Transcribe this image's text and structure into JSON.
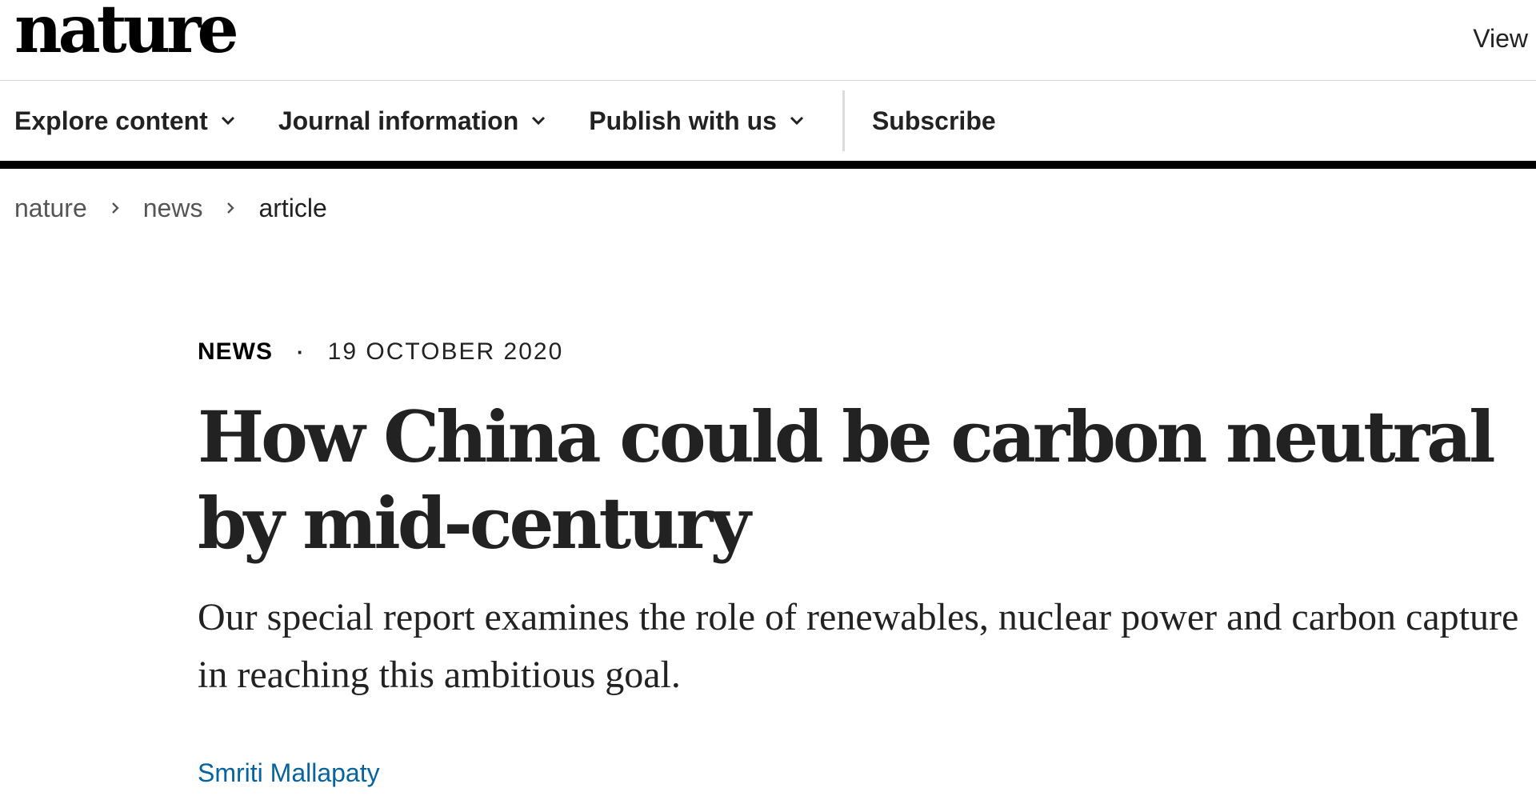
{
  "header": {
    "logo_text": "nature",
    "view_link": "View"
  },
  "nav": {
    "items": [
      {
        "label": "Explore content",
        "icon": "chevron-down-icon"
      },
      {
        "label": "Journal information",
        "icon": "chevron-down-icon"
      },
      {
        "label": "Publish with us",
        "icon": "chevron-down-icon"
      }
    ],
    "subscribe_label": "Subscribe"
  },
  "breadcrumb": {
    "items": [
      "nature",
      "news",
      "article"
    ],
    "separator_icon": "chevron-right-icon"
  },
  "article": {
    "type": "NEWS",
    "separator": "·",
    "date": "19 OCTOBER 2020",
    "title": "How China could be carbon neutral by mid-century",
    "standfirst": "Our special report examines the role of renewables, nuclear power and carbon capture in reaching this ambitious goal.",
    "author": "Smriti Mallapaty"
  },
  "colors": {
    "text": "#222222",
    "author_link": "#06639d",
    "nav_rule": "#000000"
  }
}
